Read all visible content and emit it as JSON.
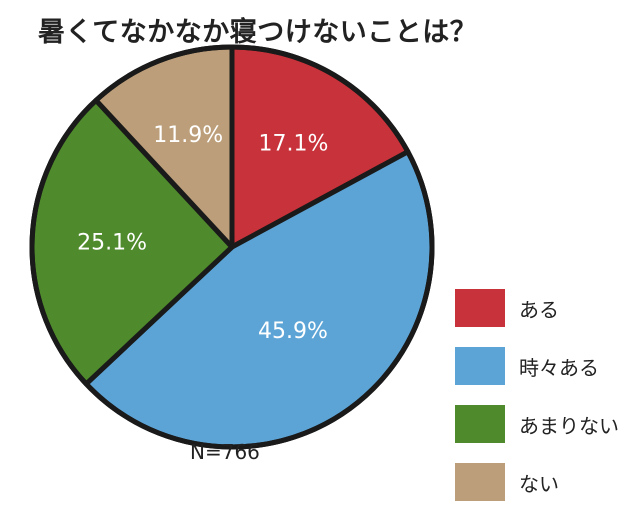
{
  "chart_data": {
    "type": "pie",
    "title": "暑くてなかなか寝つけないことは？",
    "sample_size": "N=766",
    "series": [
      {
        "name": "ある",
        "value": 17.1,
        "label": "17.1%",
        "color": "#c8323a"
      },
      {
        "name": "時々ある",
        "value": 45.9,
        "label": "45.9%",
        "color": "#5da4d6"
      },
      {
        "name": "あまりない",
        "value": 25.1,
        "label": "25.1%",
        "color": "#4f8a2c"
      },
      {
        "name": "ない",
        "value": 11.9,
        "label": "11.9%",
        "color": "#bc9f7a"
      }
    ],
    "start": "12 o'clock",
    "direction": "clockwise",
    "legend_position": "bottom-right"
  }
}
